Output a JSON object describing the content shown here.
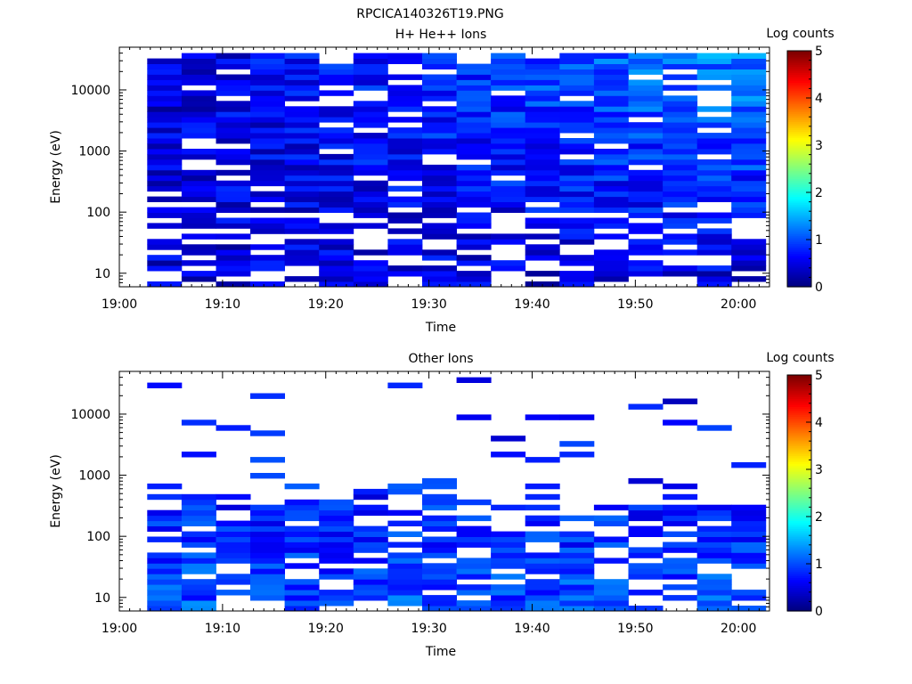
{
  "figure_title": "RPCICA140326T19.PNG",
  "colors": {
    "background": "#ffffff",
    "colormap": [
      "#00007f",
      "#0000ff",
      "#007fff",
      "#00ffff",
      "#7fff7f",
      "#ffff00",
      "#ff7f00",
      "#ff0000",
      "#7f0000"
    ]
  },
  "chart_data": [
    {
      "type": "heatmap",
      "title": "H+ He++ Ions",
      "xlabel": "Time",
      "ylabel": "Energy (eV)",
      "x_ticks": [
        "19:00",
        "19:10",
        "19:20",
        "19:30",
        "19:40",
        "19:50",
        "20:00"
      ],
      "xlim_minutes": [
        0,
        63
      ],
      "y_scale": "log",
      "y_ticks": [
        10,
        100,
        1000,
        10000
      ],
      "y_tick_labels": [
        "10",
        "100",
        "1000",
        "10000"
      ],
      "ylim": [
        6,
        50000
      ],
      "colorbar_label": "Log counts",
      "colorbar_ticks": [
        "0",
        "1",
        "2",
        "3",
        "4",
        "5"
      ],
      "colorbar_range": [
        0,
        5
      ],
      "time_bins": {
        "start_minute": 2.7,
        "width_minutes": 3.33,
        "count": 18
      },
      "energy_bins": {
        "min": 6,
        "max": 40000,
        "count": 44
      },
      "seed": 7,
      "density": "H"
    },
    {
      "type": "heatmap",
      "title": "Other Ions",
      "xlabel": "Time",
      "ylabel": "Energy (eV)",
      "x_ticks": [
        "19:00",
        "19:10",
        "19:20",
        "19:30",
        "19:40",
        "19:50",
        "20:00"
      ],
      "xlim_minutes": [
        0,
        63
      ],
      "y_scale": "log",
      "y_ticks": [
        10,
        100,
        1000,
        10000
      ],
      "y_tick_labels": [
        "10",
        "100",
        "1000",
        "10000"
      ],
      "ylim": [
        6,
        50000
      ],
      "colorbar_label": "Log counts",
      "colorbar_ticks": [
        "0",
        "1",
        "2",
        "3",
        "4",
        "5"
      ],
      "colorbar_range": [
        0,
        5
      ],
      "time_bins": {
        "start_minute": 2.7,
        "width_minutes": 3.33,
        "count": 18
      },
      "energy_bins": {
        "min": 6,
        "max": 40000,
        "count": 44
      },
      "seed": 23,
      "density": "O"
    }
  ]
}
